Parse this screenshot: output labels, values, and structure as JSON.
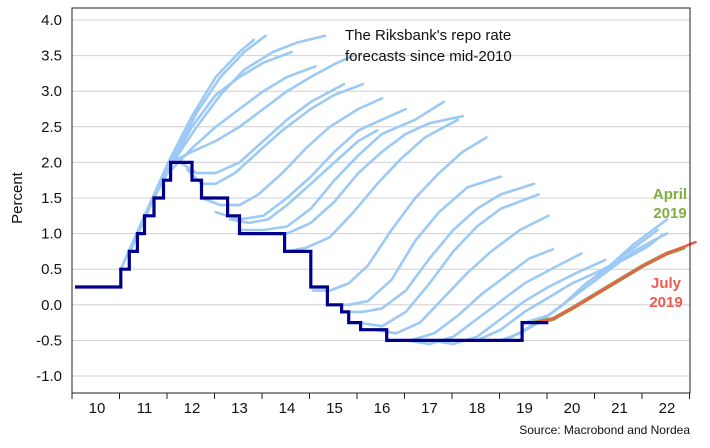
{
  "chart_data": {
    "type": "line",
    "annotation_lines": [
      "The Riksbank's repo rate",
      "forecasts since mid-2010"
    ],
    "ylabel": "Percent",
    "source": "Source: Macrobond and Nordea",
    "ylim": [
      -1.0,
      4.0
    ],
    "yticks": [
      "4.0",
      "3.5",
      "3.0",
      "2.5",
      "2.0",
      "1.5",
      "1.0",
      "0.5",
      "0.0",
      "-0.5",
      "-1.0"
    ],
    "xlim": [
      2009.65,
      2022.8
    ],
    "xticks": [
      "10",
      "11",
      "12",
      "13",
      "14",
      "15",
      "16",
      "17",
      "18",
      "19",
      "20",
      "21",
      "22"
    ],
    "grid": "horizontal",
    "colors": {
      "repo": "#00008b",
      "forecasts": "#9ccaf5",
      "april": "#7faf3f",
      "july": "#ef5b4f"
    },
    "repo_rate": {
      "name": "Repo rate",
      "steps": [
        [
          2010.0,
          0.25
        ],
        [
          2010.5,
          0.5
        ],
        [
          2010.68,
          0.75
        ],
        [
          2010.85,
          1.0
        ],
        [
          2011.0,
          1.25
        ],
        [
          2011.2,
          1.5
        ],
        [
          2011.4,
          1.75
        ],
        [
          2011.55,
          2.0
        ],
        [
          2012.0,
          1.75
        ],
        [
          2012.2,
          1.5
        ],
        [
          2012.75,
          1.25
        ],
        [
          2013.0,
          1.0
        ],
        [
          2013.95,
          0.75
        ],
        [
          2014.5,
          0.25
        ],
        [
          2014.85,
          0.0
        ],
        [
          2015.15,
          -0.1
        ],
        [
          2015.3,
          -0.25
        ],
        [
          2015.55,
          -0.35
        ],
        [
          2016.1,
          -0.5
        ],
        [
          2018.95,
          -0.25
        ],
        [
          2019.5,
          -0.25
        ]
      ]
    },
    "forecasts": [
      [
        [
          2010.5,
          0.5
        ],
        [
          2011.0,
          1.25
        ],
        [
          2011.5,
          2.0
        ],
        [
          2012.0,
          2.65
        ],
        [
          2012.5,
          3.2
        ],
        [
          2013.0,
          3.55
        ],
        [
          2013.3,
          3.72
        ]
      ],
      [
        [
          2010.7,
          0.75
        ],
        [
          2011.1,
          1.35
        ],
        [
          2011.6,
          2.05
        ],
        [
          2012.1,
          2.7
        ],
        [
          2012.6,
          3.2
        ],
        [
          2013.1,
          3.55
        ],
        [
          2013.55,
          3.78
        ]
      ],
      [
        [
          2011.0,
          1.25
        ],
        [
          2011.5,
          1.9
        ],
        [
          2012.0,
          2.5
        ],
        [
          2012.5,
          2.95
        ],
        [
          2013.0,
          3.2
        ],
        [
          2013.5,
          3.4
        ],
        [
          2014.1,
          3.55
        ]
      ],
      [
        [
          2011.2,
          1.5
        ],
        [
          2011.6,
          2.0
        ],
        [
          2012.1,
          2.5
        ],
        [
          2012.6,
          2.95
        ],
        [
          2013.1,
          3.3
        ],
        [
          2013.7,
          3.55
        ],
        [
          2014.2,
          3.68
        ],
        [
          2014.8,
          3.78
        ]
      ],
      [
        [
          2011.5,
          1.85
        ],
        [
          2012.0,
          2.2
        ],
        [
          2012.5,
          2.5
        ],
        [
          2013.0,
          2.75
        ],
        [
          2013.5,
          3.0
        ],
        [
          2014.0,
          3.2
        ],
        [
          2014.6,
          3.35
        ]
      ],
      [
        [
          2011.55,
          2.0
        ],
        [
          2012.0,
          2.15
        ],
        [
          2012.5,
          2.3
        ],
        [
          2013.0,
          2.5
        ],
        [
          2013.5,
          2.75
        ],
        [
          2014.0,
          3.0
        ],
        [
          2014.5,
          3.2
        ],
        [
          2015.0,
          3.38
        ],
        [
          2015.4,
          3.5
        ]
      ],
      [
        [
          2011.75,
          2.0
        ],
        [
          2012.1,
          1.85
        ],
        [
          2012.5,
          1.85
        ],
        [
          2013.0,
          2.0
        ],
        [
          2013.5,
          2.3
        ],
        [
          2014.0,
          2.6
        ],
        [
          2014.5,
          2.85
        ],
        [
          2015.2,
          3.1
        ]
      ],
      [
        [
          2011.9,
          1.9
        ],
        [
          2012.2,
          1.7
        ],
        [
          2012.5,
          1.7
        ],
        [
          2012.9,
          1.85
        ],
        [
          2013.4,
          2.15
        ],
        [
          2013.9,
          2.45
        ],
        [
          2014.5,
          2.75
        ],
        [
          2015.0,
          2.95
        ],
        [
          2015.6,
          3.1
        ]
      ],
      [
        [
          2012.2,
          1.5
        ],
        [
          2012.6,
          1.4
        ],
        [
          2013.0,
          1.4
        ],
        [
          2013.4,
          1.55
        ],
        [
          2013.9,
          1.85
        ],
        [
          2014.4,
          2.2
        ],
        [
          2014.9,
          2.5
        ],
        [
          2015.5,
          2.75
        ],
        [
          2016.0,
          2.9
        ]
      ],
      [
        [
          2012.5,
          1.3
        ],
        [
          2013.0,
          1.2
        ],
        [
          2013.5,
          1.25
        ],
        [
          2014.0,
          1.5
        ],
        [
          2014.5,
          1.8
        ],
        [
          2015.0,
          2.15
        ],
        [
          2015.5,
          2.45
        ],
        [
          2016.0,
          2.6
        ],
        [
          2016.5,
          2.75
        ]
      ],
      [
        [
          2012.8,
          1.2
        ],
        [
          2013.2,
          1.15
        ],
        [
          2013.6,
          1.2
        ],
        [
          2014.0,
          1.4
        ],
        [
          2014.5,
          1.7
        ],
        [
          2015.0,
          2.0
        ],
        [
          2015.5,
          2.3
        ],
        [
          2015.9,
          2.45
        ]
      ],
      [
        [
          2013.0,
          1.05
        ],
        [
          2013.5,
          1.05
        ],
        [
          2014.0,
          1.1
        ],
        [
          2014.5,
          1.35
        ],
        [
          2015.0,
          1.75
        ],
        [
          2015.5,
          2.1
        ],
        [
          2016.0,
          2.4
        ],
        [
          2016.7,
          2.6
        ],
        [
          2017.3,
          2.85
        ]
      ],
      [
        [
          2013.5,
          1.0
        ],
        [
          2014.0,
          1.0
        ],
        [
          2014.5,
          1.15
        ],
        [
          2015.0,
          1.45
        ],
        [
          2015.5,
          1.85
        ],
        [
          2016.0,
          2.15
        ],
        [
          2016.5,
          2.4
        ],
        [
          2017.0,
          2.55
        ],
        [
          2017.7,
          2.65
        ]
      ],
      [
        [
          2014.0,
          0.75
        ],
        [
          2014.4,
          0.8
        ],
        [
          2014.9,
          0.95
        ],
        [
          2015.4,
          1.3
        ],
        [
          2015.9,
          1.7
        ],
        [
          2016.4,
          2.05
        ],
        [
          2016.9,
          2.35
        ],
        [
          2017.6,
          2.6
        ]
      ],
      [
        [
          2014.55,
          0.2
        ],
        [
          2014.9,
          0.2
        ],
        [
          2015.3,
          0.3
        ],
        [
          2015.7,
          0.55
        ],
        [
          2016.2,
          1.05
        ],
        [
          2016.7,
          1.5
        ],
        [
          2017.2,
          1.85
        ],
        [
          2017.7,
          2.15
        ],
        [
          2018.2,
          2.35
        ]
      ],
      [
        [
          2014.85,
          0.0
        ],
        [
          2015.3,
          0.0
        ],
        [
          2015.7,
          0.05
        ],
        [
          2016.2,
          0.35
        ],
        [
          2016.7,
          0.9
        ],
        [
          2017.2,
          1.3
        ],
        [
          2017.8,
          1.65
        ],
        [
          2018.5,
          1.8
        ]
      ],
      [
        [
          2015.2,
          -0.1
        ],
        [
          2015.6,
          -0.1
        ],
        [
          2016.0,
          -0.05
        ],
        [
          2016.5,
          0.2
        ],
        [
          2017.0,
          0.65
        ],
        [
          2017.5,
          1.05
        ],
        [
          2018.0,
          1.35
        ],
        [
          2018.5,
          1.55
        ],
        [
          2019.2,
          1.7
        ]
      ],
      [
        [
          2015.5,
          -0.25
        ],
        [
          2016.0,
          -0.3
        ],
        [
          2016.5,
          -0.1
        ],
        [
          2017.0,
          0.3
        ],
        [
          2017.5,
          0.75
        ],
        [
          2018.0,
          1.1
        ],
        [
          2018.5,
          1.35
        ],
        [
          2019.3,
          1.55
        ]
      ],
      [
        [
          2015.8,
          -0.35
        ],
        [
          2016.3,
          -0.4
        ],
        [
          2016.8,
          -0.25
        ],
        [
          2017.3,
          0.1
        ],
        [
          2017.8,
          0.45
        ],
        [
          2018.3,
          0.75
        ],
        [
          2018.9,
          1.05
        ],
        [
          2019.5,
          1.25
        ]
      ],
      [
        [
          2016.1,
          -0.5
        ],
        [
          2016.6,
          -0.5
        ],
        [
          2017.1,
          -0.4
        ],
        [
          2017.6,
          -0.15
        ],
        [
          2018.1,
          0.15
        ],
        [
          2018.6,
          0.4
        ],
        [
          2019.1,
          0.65
        ],
        [
          2019.6,
          0.78
        ]
      ],
      [
        [
          2016.5,
          -0.5
        ],
        [
          2017.0,
          -0.55
        ],
        [
          2017.5,
          -0.45
        ],
        [
          2018.0,
          -0.2
        ],
        [
          2018.5,
          0.05
        ],
        [
          2019.0,
          0.3
        ],
        [
          2019.7,
          0.55
        ],
        [
          2020.2,
          0.72
        ]
      ],
      [
        [
          2017.0,
          -0.5
        ],
        [
          2017.5,
          -0.55
        ],
        [
          2018.0,
          -0.45
        ],
        [
          2018.5,
          -0.2
        ],
        [
          2019.0,
          0.05
        ],
        [
          2019.5,
          0.25
        ],
        [
          2020.1,
          0.45
        ],
        [
          2020.7,
          0.63
        ]
      ],
      [
        [
          2017.6,
          -0.5
        ],
        [
          2018.0,
          -0.5
        ],
        [
          2018.5,
          -0.35
        ],
        [
          2019.0,
          -0.1
        ],
        [
          2019.5,
          0.1
        ],
        [
          2020.0,
          0.3
        ],
        [
          2020.6,
          0.48
        ],
        [
          2021.1,
          0.65
        ]
      ],
      [
        [
          2018.1,
          -0.5
        ],
        [
          2018.6,
          -0.5
        ],
        [
          2019.0,
          -0.35
        ],
        [
          2019.5,
          -0.15
        ],
        [
          2020.0,
          0.1
        ],
        [
          2020.5,
          0.35
        ],
        [
          2021.0,
          0.6
        ],
        [
          2021.6,
          0.82
        ],
        [
          2021.9,
          0.98
        ]
      ],
      [
        [
          2018.5,
          -0.5
        ],
        [
          2018.9,
          -0.4
        ],
        [
          2019.3,
          -0.25
        ],
        [
          2019.8,
          0.0
        ],
        [
          2020.3,
          0.25
        ],
        [
          2020.8,
          0.5
        ],
        [
          2021.3,
          0.75
        ],
        [
          2021.7,
          0.9
        ],
        [
          2022.0,
          1.0
        ]
      ],
      [
        [
          2019.0,
          -0.25
        ],
        [
          2019.4,
          -0.2
        ],
        [
          2019.8,
          0.0
        ],
        [
          2020.3,
          0.3
        ],
        [
          2020.8,
          0.55
        ],
        [
          2021.3,
          0.85
        ],
        [
          2021.8,
          1.1
        ],
        [
          2022.0,
          1.2
        ]
      ],
      [
        [
          2019.0,
          -0.25
        ],
        [
          2019.5,
          -0.15
        ],
        [
          2020.0,
          0.1
        ],
        [
          2020.5,
          0.35
        ],
        [
          2021.0,
          0.65
        ],
        [
          2021.5,
          0.9
        ],
        [
          2021.8,
          1.05
        ]
      ]
    ],
    "april_2019": {
      "name": "April 2019",
      "label_lines": [
        "April",
        "2019"
      ],
      "points": [
        [
          2019.2,
          -0.25
        ],
        [
          2019.6,
          -0.2
        ],
        [
          2020.0,
          -0.05
        ],
        [
          2020.5,
          0.15
        ],
        [
          2021.0,
          0.35
        ],
        [
          2021.5,
          0.55
        ],
        [
          2022.0,
          0.72
        ],
        [
          2022.35,
          0.8
        ]
      ]
    },
    "july_2019": {
      "name": "July 2019",
      "label_lines": [
        "July",
        "2019"
      ],
      "points": [
        [
          2019.2,
          -0.25
        ],
        [
          2019.6,
          -0.2
        ],
        [
          2020.0,
          -0.05
        ],
        [
          2020.5,
          0.15
        ],
        [
          2021.0,
          0.35
        ],
        [
          2021.5,
          0.55
        ],
        [
          2022.0,
          0.72
        ],
        [
          2022.6,
          0.88
        ]
      ]
    }
  }
}
